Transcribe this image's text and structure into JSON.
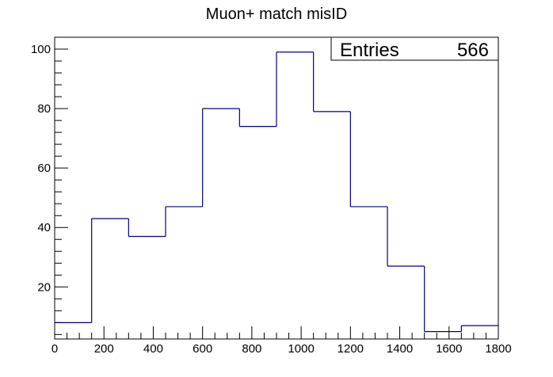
{
  "chart_data": {
    "type": "bar",
    "style": "step-histogram",
    "title": "Muon+ match misID",
    "xlabel": "",
    "ylabel": "",
    "bin_edges": [
      0,
      150,
      300,
      450,
      600,
      750,
      900,
      1050,
      1200,
      1350,
      1500,
      1650,
      1800
    ],
    "values": [
      8,
      43,
      37,
      47,
      80,
      74,
      99,
      79,
      47,
      27,
      5,
      7
    ],
    "xlim": [
      0,
      1800
    ],
    "ylim": [
      2.5,
      104
    ],
    "x_ticks": [
      0,
      200,
      400,
      600,
      800,
      1000,
      1200,
      1400,
      1600,
      1800
    ],
    "y_ticks": [
      20,
      40,
      60,
      80,
      100
    ],
    "grid": false,
    "line_color": "#000080",
    "stats_box": {
      "label": "Entries",
      "value": "566",
      "placement": "top-right"
    }
  }
}
